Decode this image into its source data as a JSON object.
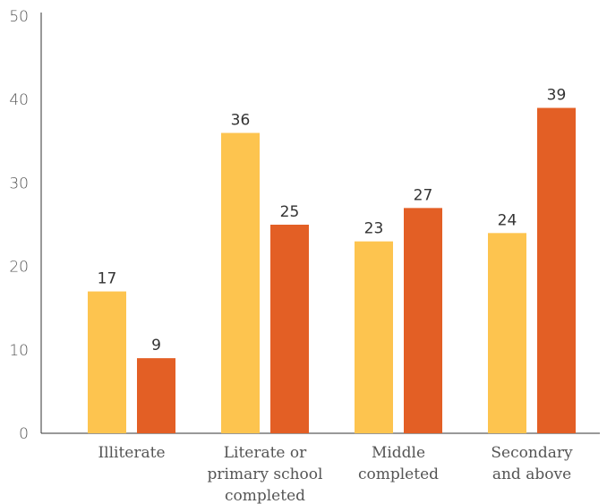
{
  "chart_data": {
    "type": "bar",
    "title": "",
    "xlabel": "",
    "ylabel": "",
    "ylim": [
      0,
      50
    ],
    "yticks": [
      0,
      10,
      20,
      30,
      40,
      50
    ],
    "grid": false,
    "legend": "none",
    "categories": [
      [
        "Illiterate"
      ],
      [
        "Literate or",
        "primary school",
        "completed"
      ],
      [
        "Middle",
        "completed"
      ],
      [
        "Secondary",
        "and above"
      ]
    ],
    "series": [
      {
        "color": "#FDC44F",
        "values": [
          17,
          36,
          23,
          24
        ]
      },
      {
        "color": "#E35F25",
        "values": [
          9,
          25,
          27,
          39
        ]
      }
    ]
  }
}
